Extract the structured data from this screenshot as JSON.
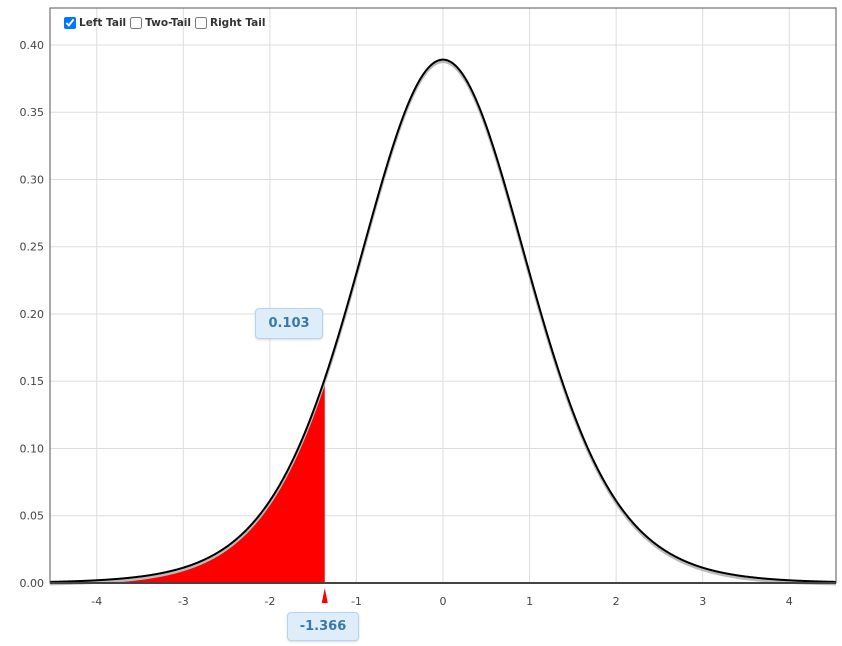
{
  "controls": {
    "tails": [
      {
        "label": "Left Tail",
        "checked": true
      },
      {
        "label": "Two-Tail",
        "checked": false
      },
      {
        "label": "Right Tail",
        "checked": false
      }
    ]
  },
  "chart_data": {
    "type": "area",
    "title": "",
    "xlabel": "",
    "ylabel": "",
    "xlim": [
      -4.54,
      4.54
    ],
    "ylim": [
      0,
      0.4275
    ],
    "xticks": [
      "-4",
      "-3",
      "-2",
      "-1",
      "0",
      "1",
      "2",
      "3",
      "4"
    ],
    "xtick_values": [
      -4,
      -3,
      -2,
      -1,
      0,
      1,
      2,
      3,
      4
    ],
    "yticks": [
      "0.00",
      "0.05",
      "0.10",
      "0.15",
      "0.20",
      "0.25",
      "0.30",
      "0.35",
      "0.40"
    ],
    "ytick_values": [
      0,
      0.05,
      0.1,
      0.15,
      0.2,
      0.25,
      0.3,
      0.35,
      0.4
    ],
    "grid": true,
    "critical_value": -1.366,
    "critical_label": "-1.366",
    "tail_probability": 0.103,
    "tail_probability_label": "0.103",
    "shaded_tail": "left",
    "colors": {
      "fill": "#ff0000",
      "curve": "#000000",
      "grid": "#dddddd",
      "bubble": "#ddeefa",
      "bubble_text": "#3a78aa"
    }
  }
}
